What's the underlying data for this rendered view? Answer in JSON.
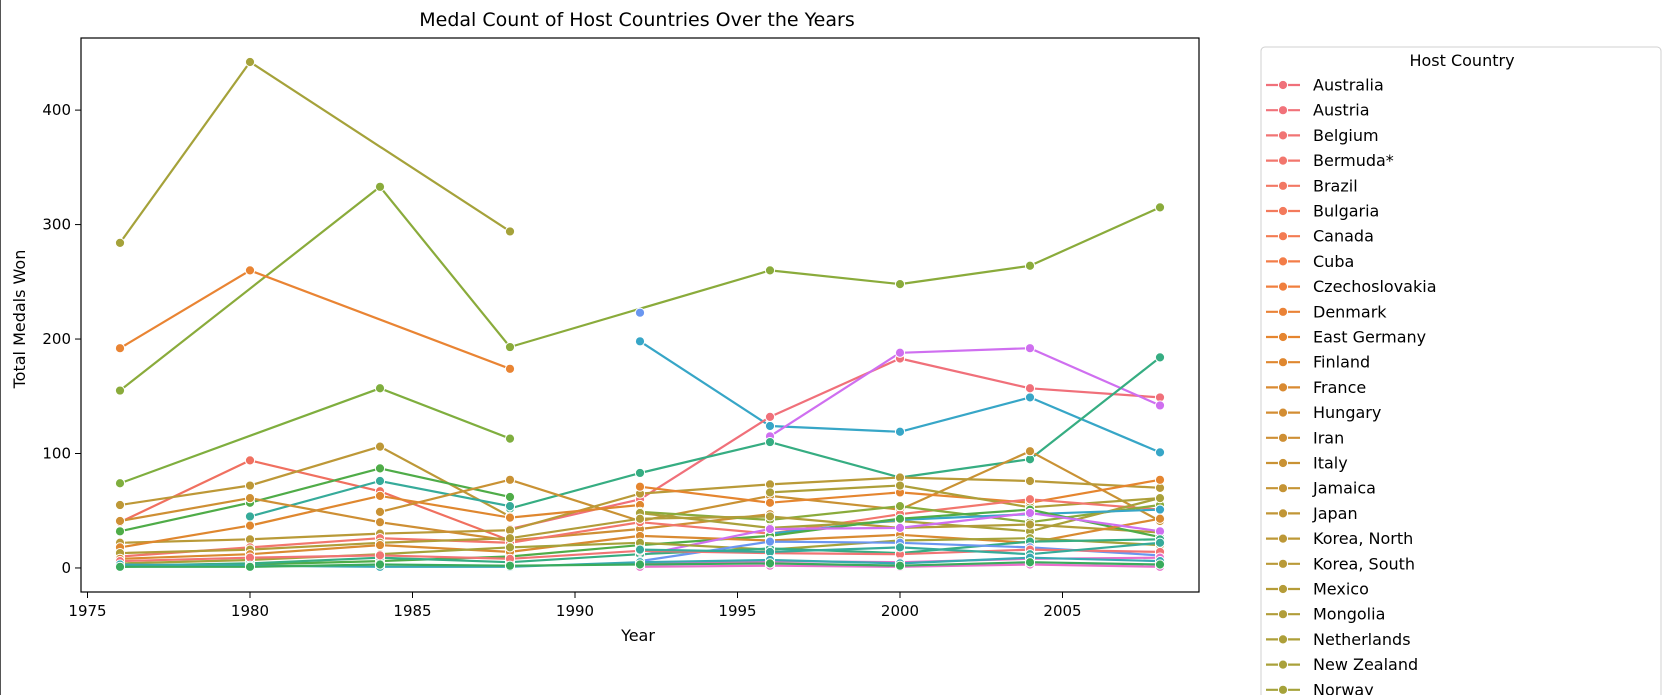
{
  "chart_data": {
    "type": "line",
    "title": "Medal Count of Host Countries Over the Years",
    "xlabel": "Year",
    "ylabel": "Total Medals Won",
    "xlim": [
      1974.8,
      2009.2
    ],
    "ylim": [
      -21,
      463
    ],
    "x_ticks": [
      1975,
      1980,
      1985,
      1990,
      1995,
      2000,
      2005
    ],
    "y_ticks": [
      0,
      100,
      200,
      300,
      400
    ],
    "grid": false,
    "legend": {
      "title": "Host Country",
      "placement": "right, outside plot",
      "entries": [
        {
          "name": "Australia",
          "color": "#f0707a"
        },
        {
          "name": "Austria",
          "color": "#f1727a"
        },
        {
          "name": "Belgium",
          "color": "#f17474"
        },
        {
          "name": "Bermuda*",
          "color": "#f2766d"
        },
        {
          "name": "Brazil",
          "color": "#f27864"
        },
        {
          "name": "Bulgaria",
          "color": "#f37a5c"
        },
        {
          "name": "Canada",
          "color": "#f37b52"
        },
        {
          "name": "Cuba",
          "color": "#f37d48"
        },
        {
          "name": "Czechoslovakia",
          "color": "#f07f3e"
        },
        {
          "name": "Denmark",
          "color": "#ea8236"
        },
        {
          "name": "East Germany",
          "color": "#e5852f"
        },
        {
          "name": "Finland",
          "color": "#df872f"
        },
        {
          "name": "France",
          "color": "#d98a31"
        },
        {
          "name": "Hungary",
          "color": "#d38d33"
        },
        {
          "name": "Iran",
          "color": "#ce8f34"
        },
        {
          "name": "Italy",
          "color": "#c99234"
        },
        {
          "name": "Jamaica",
          "color": "#c59435"
        },
        {
          "name": "Japan",
          "color": "#c19636"
        },
        {
          "name": "Korea, North",
          "color": "#bd9837"
        },
        {
          "name": "Korea, South",
          "color": "#b99a38"
        },
        {
          "name": "Mexico",
          "color": "#b59c38"
        },
        {
          "name": "Mongolia",
          "color": "#b19d39"
        },
        {
          "name": "Netherlands",
          "color": "#ad9f39"
        },
        {
          "name": "New Zealand",
          "color": "#a9a13a"
        },
        {
          "name": "Norway",
          "color": "#a5a23a"
        }
      ]
    },
    "series": [
      {
        "color": "#a5a23a",
        "x": [
          1976,
          1980,
          1988
        ],
        "y": [
          284,
          442,
          294
        ]
      },
      {
        "color": "#8aab3b",
        "x": [
          1976,
          1984,
          1988,
          1996,
          2000,
          2004,
          2008
        ],
        "y": [
          155,
          333,
          193,
          260,
          248,
          264,
          315
        ]
      },
      {
        "color": "#e98433",
        "x": [
          1976,
          1980,
          1988
        ],
        "y": [
          192,
          260,
          174
        ]
      },
      {
        "color": "#7fae3e",
        "x": [
          1976,
          1984,
          1988
        ],
        "y": [
          74,
          157,
          113
        ]
      },
      {
        "color": "#6a96f0",
        "x": [
          1992
        ],
        "y": [
          223
        ]
      },
      {
        "color": "#37a6c7",
        "x": [
          1992,
          1996,
          2000,
          2004,
          2008
        ],
        "y": [
          198,
          124,
          119,
          149,
          101
        ]
      },
      {
        "color": "#f0707a",
        "x": [
          1988,
          1992,
          1996,
          2000,
          2004,
          2008
        ],
        "y": [
          34,
          60,
          132,
          183,
          157,
          149
        ]
      },
      {
        "color": "#cf6ff0",
        "x": [
          1996,
          2000,
          2004,
          2008
        ],
        "y": [
          115,
          188,
          192,
          142
        ]
      },
      {
        "color": "#36ad82",
        "x": [
          1988,
          1992,
          1996,
          2000,
          2004,
          2008
        ],
        "y": [
          52,
          83,
          110,
          79,
          95,
          184
        ]
      },
      {
        "color": "#f07060",
        "x": [
          1976,
          1980,
          1984,
          1988
        ],
        "y": [
          40,
          94,
          67,
          24
        ]
      },
      {
        "color": "#bd9837",
        "x": [
          1976,
          1980,
          1984,
          1988
        ],
        "y": [
          55,
          72,
          106,
          45
        ]
      },
      {
        "color": "#4fac48",
        "x": [
          1976,
          1980,
          1984,
          1988
        ],
        "y": [
          32,
          57,
          87,
          62
        ]
      },
      {
        "color": "#36ab9a",
        "x": [
          1980,
          1984,
          1988
        ],
        "y": [
          45,
          76,
          54
        ]
      },
      {
        "color": "#c99234",
        "x": [
          1984,
          1988,
          1992,
          1996,
          2000,
          2004,
          2008
        ],
        "y": [
          49,
          77,
          41,
          63,
          51,
          102,
          41
        ]
      },
      {
        "color": "#b99a38",
        "x": [
          1976,
          1980,
          1984,
          1988,
          1992,
          1996,
          2000,
          2004,
          2008
        ],
        "y": [
          22,
          25,
          30,
          33,
          65,
          73,
          79,
          76,
          70
        ]
      },
      {
        "color": "#e5852f",
        "x": [
          1992,
          1996,
          2000,
          2004,
          2008
        ],
        "y": [
          71,
          57,
          66,
          57,
          77
        ]
      },
      {
        "color": "#ad9f39",
        "x": [
          1996,
          2000,
          2004,
          2008
        ],
        "y": [
          66,
          72,
          53,
          61
        ]
      },
      {
        "color": "#df872f",
        "x": [
          1976,
          1980,
          1984,
          1988,
          1992
        ],
        "y": [
          18,
          37,
          63,
          44,
          55
        ]
      },
      {
        "color": "#ce8f34",
        "x": [
          1976,
          1980,
          1984,
          1988,
          1992,
          1996
        ],
        "y": [
          41,
          61,
          40,
          24,
          34,
          47
        ]
      },
      {
        "color": "#f2766d",
        "x": [
          1976,
          1980,
          1984,
          1988,
          1992,
          1996,
          2000,
          2004,
          2008
        ],
        "y": [
          10,
          18,
          26,
          22,
          40,
          30,
          47,
          60,
          51
        ]
      },
      {
        "color": "#8aab3b",
        "x": [
          1992,
          1996,
          2000,
          2004,
          2008
        ],
        "y": [
          49,
          42,
          54,
          40,
          55
        ]
      },
      {
        "color": "#a9a13a",
        "x": [
          1992,
          1996,
          2000,
          2004,
          2008
        ],
        "y": [
          48,
          35,
          41,
          32,
          61
        ]
      },
      {
        "color": "#37a6c7",
        "x": [
          1996,
          2000,
          2004,
          2008
        ],
        "y": [
          30,
          42,
          47,
          51
        ]
      },
      {
        "color": "#b19d39",
        "x": [
          1976,
          1980,
          1984,
          1988,
          1992,
          1996,
          2000,
          2004,
          2008
        ],
        "y": [
          13,
          16,
          22,
          26,
          43,
          45,
          35,
          38,
          31
        ]
      },
      {
        "color": "#4fac48",
        "x": [
          1976,
          1980,
          1984,
          1988,
          1992,
          1996,
          2000,
          2004,
          2008
        ],
        "y": [
          1,
          3,
          6,
          10,
          20,
          28,
          43,
          51,
          27
        ]
      },
      {
        "color": "#d98a31",
        "x": [
          1976,
          1980,
          1984,
          1988,
          1992,
          1996,
          2000,
          2004,
          2008
        ],
        "y": [
          8,
          12,
          20,
          14,
          28,
          24,
          29,
          22,
          43
        ]
      },
      {
        "color": "#cf6ff0",
        "x": [
          1992,
          1996,
          2000,
          2004,
          2008
        ],
        "y": [
          11,
          34,
          35,
          48,
          32
        ]
      },
      {
        "color": "#a5a23a",
        "x": [
          1976,
          1980,
          1984,
          1988,
          1992,
          1996,
          2000,
          2004,
          2008
        ],
        "y": [
          4,
          7,
          12,
          18,
          22,
          16,
          24,
          26,
          20
        ]
      },
      {
        "color": "#36ad82",
        "x": [
          1976,
          1980,
          1984,
          1988,
          1992,
          1996,
          2000,
          2004,
          2008
        ],
        "y": [
          2,
          4,
          9,
          5,
          12,
          17,
          13,
          23,
          25
        ]
      },
      {
        "color": "#6a96f0",
        "x": [
          1992,
          1996,
          2000,
          2004,
          2008
        ],
        "y": [
          6,
          23,
          22,
          18,
          11
        ]
      },
      {
        "color": "#f17474",
        "x": [
          1976,
          1980,
          1984,
          1988,
          1992,
          1996,
          2000,
          2004,
          2008
        ],
        "y": [
          6,
          9,
          11,
          8,
          15,
          13,
          12,
          16,
          14
        ]
      },
      {
        "color": "#36ab9a",
        "x": [
          1992,
          1996,
          2000,
          2004,
          2008
        ],
        "y": [
          16,
          14,
          18,
          12,
          22
        ]
      },
      {
        "color": "#e86fcb",
        "x": [
          1992,
          1996,
          2000,
          2004,
          2008
        ],
        "y": [
          1,
          2,
          1,
          3,
          1
        ]
      },
      {
        "color": "#e86fcb",
        "x": [
          1992,
          1996,
          2000,
          2004,
          2008
        ],
        "y": [
          4,
          6,
          5,
          8,
          9
        ]
      },
      {
        "color": "#38a9b2",
        "x": [
          1976,
          1980,
          1984,
          1988,
          1992,
          1996,
          2000,
          2004,
          2008
        ],
        "y": [
          3,
          2,
          1,
          1,
          5,
          7,
          4,
          9,
          6
        ]
      },
      {
        "color": "#3aab5c",
        "x": [
          1976,
          1980,
          1984,
          1988,
          1992,
          1996,
          2000,
          2004,
          2008
        ],
        "y": [
          1,
          1,
          3,
          2,
          3,
          4,
          2,
          5,
          3
        ]
      }
    ]
  }
}
